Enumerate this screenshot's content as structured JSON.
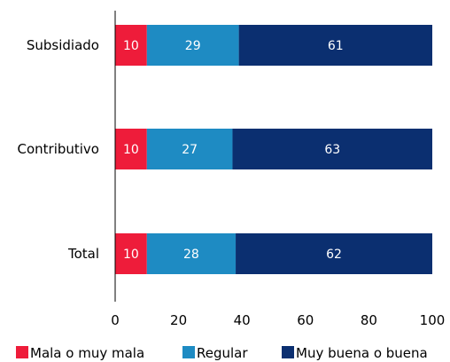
{
  "chart_data": {
    "type": "bar",
    "orientation": "horizontal",
    "stacked": true,
    "categories": [
      "Subsidiado",
      "Contributivo",
      "Total"
    ],
    "series": [
      {
        "name": "Mala o muy mala",
        "color": "#ee1c3a",
        "values": [
          10,
          10,
          10
        ]
      },
      {
        "name": "Regular",
        "color": "#1e8bc3",
        "values": [
          29,
          27,
          28
        ]
      },
      {
        "name": "Muy buena o buena",
        "color": "#0b2f70",
        "values": [
          61,
          63,
          62
        ]
      }
    ],
    "xlim": [
      0,
      100
    ],
    "xticks": [
      0,
      20,
      40,
      60,
      80,
      100
    ],
    "grid": false,
    "legend_position": "bottom"
  }
}
